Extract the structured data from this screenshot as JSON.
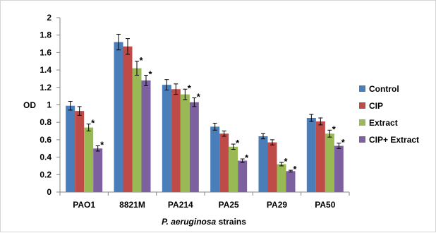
{
  "chart_data": {
    "type": "bar",
    "title": "",
    "xlabel_prefix": "P. aeruginosa",
    "xlabel_suffix": " strains",
    "ylabel": "OD",
    "ylim": [
      0,
      2
    ],
    "yticks": [
      0,
      0.2,
      0.4,
      0.6,
      0.8,
      1,
      1.2,
      1.4,
      1.6,
      1.8,
      2
    ],
    "ytick_labels": [
      "0",
      "0.2",
      "0.4",
      "0.6",
      "0.8",
      "1",
      "1.2",
      "1.4",
      "1.6",
      "1.8",
      "2"
    ],
    "grid": false,
    "legend_position": "right",
    "categories": [
      "PAO1",
      "8821M",
      "PA214",
      "PA25",
      "PA29",
      "PA50"
    ],
    "series": [
      {
        "name": "Control",
        "color": "#4a7ebb",
        "values": [
          0.99,
          1.72,
          1.23,
          0.75,
          0.64,
          0.85
        ],
        "errors": [
          0.05,
          0.09,
          0.06,
          0.04,
          0.03,
          0.04
        ],
        "significant": [
          false,
          false,
          false,
          false,
          false,
          false
        ]
      },
      {
        "name": "CIP",
        "color": "#be4b48",
        "values": [
          0.93,
          1.67,
          1.18,
          0.67,
          0.57,
          0.81
        ],
        "errors": [
          0.05,
          0.09,
          0.06,
          0.03,
          0.03,
          0.04
        ],
        "significant": [
          false,
          false,
          false,
          false,
          false,
          false
        ]
      },
      {
        "name": "Extract",
        "color": "#98b954",
        "values": [
          0.74,
          1.42,
          1.12,
          0.52,
          0.32,
          0.67
        ],
        "errors": [
          0.04,
          0.08,
          0.06,
          0.03,
          0.02,
          0.04
        ],
        "significant": [
          true,
          true,
          true,
          true,
          true,
          true
        ]
      },
      {
        "name": "CIP+ Extract",
        "color": "#7d60a0",
        "values": [
          0.5,
          1.28,
          1.03,
          0.36,
          0.24,
          0.53
        ],
        "errors": [
          0.03,
          0.06,
          0.05,
          0.02,
          0.01,
          0.03
        ],
        "significant": [
          true,
          true,
          true,
          true,
          true,
          true
        ]
      }
    ],
    "significance_marker": "*"
  }
}
